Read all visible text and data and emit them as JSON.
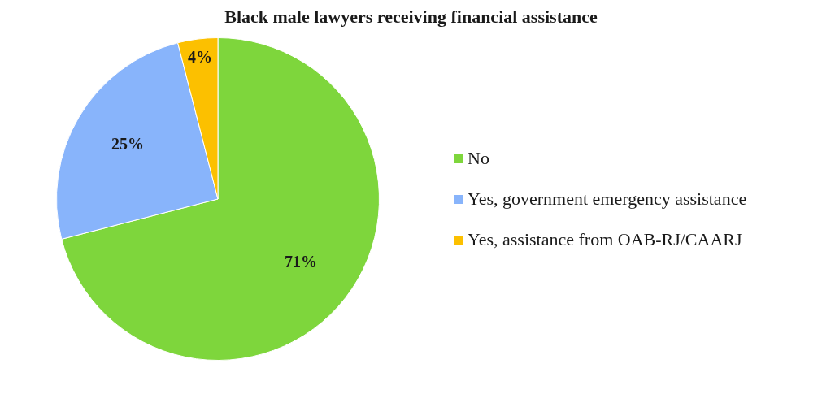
{
  "chart_data": {
    "type": "pie",
    "title": "Black male lawyers receiving financial assistance",
    "categories": [
      "No",
      "Yes, government emergency assistance",
      "Yes, assistance from OAB-RJ/CAARJ"
    ],
    "values": [
      71,
      25,
      4
    ],
    "colors": [
      "#7ed63c",
      "#88b4fb",
      "#fcc000"
    ],
    "value_labels": [
      "71%",
      "25%",
      "4%"
    ],
    "legend": "right"
  }
}
